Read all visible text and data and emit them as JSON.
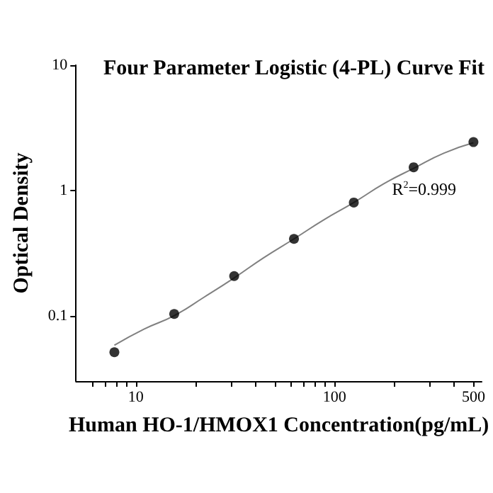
{
  "chart_data": {
    "type": "scatter",
    "title": "Four Parameter Logistic (4-PL) Curve Fit",
    "xlabel": "Human HO-1/HMOX1 Concentration(pg/mL)",
    "ylabel": "Optical Density",
    "log": "xy",
    "grid": false,
    "marker": "circle",
    "xlim": [
      5,
      550
    ],
    "ylim": [
      0.03,
      10
    ],
    "xticks": [
      {
        "value": 6,
        "label": null
      },
      {
        "value": 7,
        "label": null
      },
      {
        "value": 8,
        "label": null
      },
      {
        "value": 9,
        "label": null
      },
      10,
      {
        "value": 20,
        "label": null
      },
      {
        "value": 30,
        "label": null
      },
      {
        "value": 40,
        "label": null
      },
      {
        "value": 50,
        "label": null
      },
      {
        "value": 60,
        "label": null
      },
      {
        "value": 70,
        "label": null
      },
      {
        "value": 80,
        "label": null
      },
      {
        "value": 90,
        "label": null
      },
      100,
      {
        "value": 200,
        "label": null
      },
      {
        "value": 300,
        "label": null
      },
      {
        "value": 400,
        "label": null
      },
      500
    ],
    "yticks": [
      0.1,
      1,
      10
    ],
    "annotations": [
      "R$^{2}$=0.999"
    ],
    "series": [
      {
        "color": "#000000",
        "x": [
          7.8,
          15.6,
          31.25,
          62.5,
          125,
          250,
          500
        ],
        "values": [
          0.051,
          0.103,
          0.207,
          0.41,
          0.8,
          1.53,
          2.43
        ]
      },
      {
        "type": "line",
        "color": "#808080",
        "marker": "none",
        "line_style": "solid",
        "x": [
          7.8,
          11,
          15.6,
          22,
          31.25,
          44,
          62.5,
          88,
          125,
          177,
          250,
          354,
          500
        ],
        "values": [
          0.058,
          0.078,
          0.1,
          0.14,
          0.2,
          0.29,
          0.41,
          0.58,
          0.8,
          1.13,
          1.5,
          1.98,
          2.4
        ]
      }
    ]
  }
}
